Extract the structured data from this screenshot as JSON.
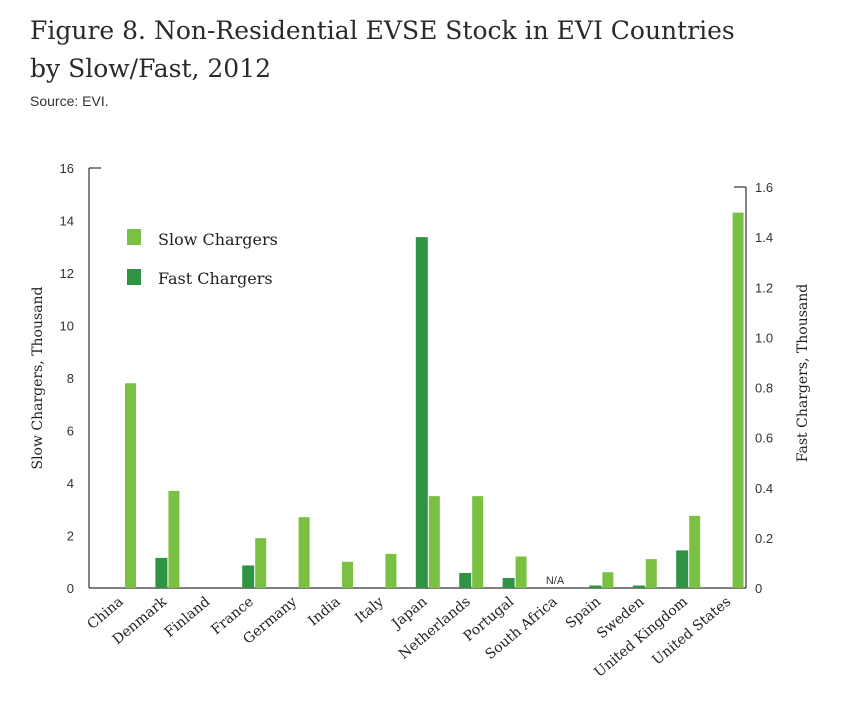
{
  "header": {
    "title_line1": "Figure 8. Non-Residential EVSE Stock in EVI Countries",
    "title_line2": "by Slow/Fast, 2012",
    "source": "Source: EVI."
  },
  "chart_data": {
    "type": "bar",
    "categories": [
      "China",
      "Denmark",
      "Finland",
      "France",
      "Germany",
      "India",
      "Italy",
      "Japan",
      "Netherlands",
      "Portugal",
      "South Africa",
      "Spain",
      "Sweden",
      "United Kingdom",
      "United States"
    ],
    "series": [
      {
        "name": "Slow Chargers",
        "axis": "left",
        "color": "#7ac143",
        "values": [
          7.8,
          3.7,
          0,
          1.9,
          2.7,
          1.0,
          1.3,
          3.5,
          3.5,
          1.2,
          null,
          0.6,
          1.1,
          2.75,
          14.3
        ]
      },
      {
        "name": "Fast Chargers",
        "axis": "right",
        "color": "#2e9443",
        "values": [
          0,
          0.12,
          0,
          0.09,
          0,
          0,
          0,
          1.4,
          0.06,
          0.04,
          null,
          0.01,
          0.01,
          0.15,
          0
        ]
      }
    ],
    "ylabel": "Slow Chargers, Thousand",
    "y2label": "Fast Chargers, Thousand",
    "ylim": [
      0,
      16
    ],
    "y2lim": [
      0,
      1.6
    ],
    "yticks": [
      "0",
      "2",
      "4",
      "6",
      "8",
      "10",
      "12",
      "14",
      "16"
    ],
    "y2ticks": [
      "0",
      "0.2",
      "0.4",
      "0.6",
      "0.8",
      "1.0",
      "1.2",
      "1.4",
      "1.6"
    ],
    "annotations": [
      {
        "category": "South Africa",
        "text": "N/A"
      }
    ],
    "legend": {
      "placement": "top-left",
      "entries": [
        "Slow Chargers",
        "Fast Chargers"
      ]
    },
    "grid": false
  }
}
